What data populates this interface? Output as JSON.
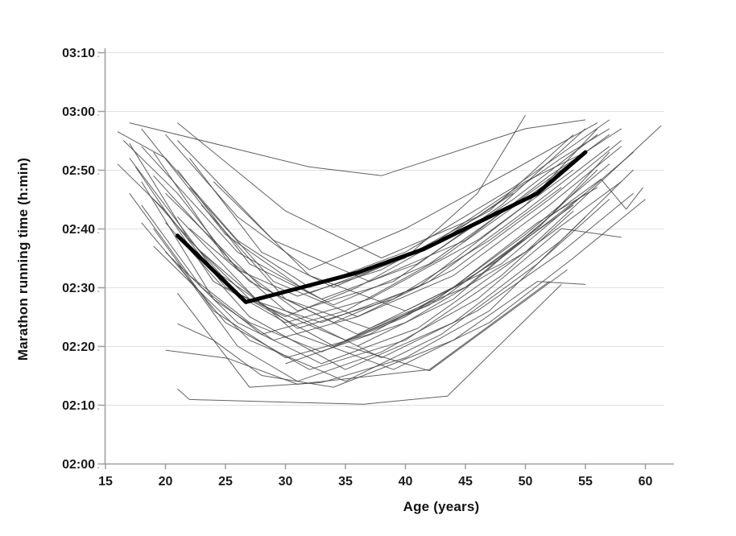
{
  "chart_data": {
    "type": "line",
    "title": "",
    "xlabel": "Age (years)",
    "ylabel": "Marathon running time (h:min)",
    "x_ticks": [
      15,
      20,
      25,
      30,
      35,
      40,
      45,
      50,
      55,
      60
    ],
    "xlim": [
      15,
      62.5
    ],
    "y_value_encoding": "minutes after 02:00 h",
    "ylim_minutes": [
      0,
      70
    ],
    "y_ticks": [
      {
        "label": "03:10",
        "minutes": 70
      },
      {
        "label": "03:00",
        "minutes": 60
      },
      {
        "label": "02:50",
        "minutes": 50
      },
      {
        "label": "02:40",
        "minutes": 40
      },
      {
        "label": "02:30",
        "minutes": 30
      },
      {
        "label": "02:20",
        "minutes": 20
      },
      {
        "label": "02:10",
        "minutes": 10
      },
      {
        "label": "02:00",
        "minutes": 0
      }
    ],
    "y_tick_suffix": ":",
    "grid": "horizontal",
    "legend": "none",
    "colors": {
      "individual_line": "#454545",
      "mean_line": "#000000",
      "axis": "#9d9d9d",
      "gridline": "#e0e0e0",
      "tick_label": "#1a1a1a",
      "tick_suffix": "#b5b5b5"
    },
    "mean_series": {
      "name": "mean-trajectory",
      "points": [
        [
          21,
          38.8
        ],
        [
          26.7,
          27.5
        ],
        [
          31,
          29.8
        ],
        [
          36,
          32.5
        ],
        [
          41.5,
          36.5
        ],
        [
          47.5,
          42.5
        ],
        [
          51,
          46
        ],
        [
          55,
          53
        ]
      ]
    },
    "n_individual_series": 40,
    "individual_series": [
      [
        [
          21,
          12.7
        ],
        [
          22,
          10.9
        ],
        [
          31,
          10.4
        ],
        [
          36.5,
          10.1
        ],
        [
          43.5,
          11.5
        ],
        [
          53,
          30.5
        ]
      ],
      [
        [
          20,
          19.3
        ],
        [
          25.2,
          17.9
        ],
        [
          31,
          13.5
        ],
        [
          42,
          16
        ],
        [
          52,
          31
        ]
      ],
      [
        [
          21,
          29
        ],
        [
          27,
          13
        ],
        [
          33,
          13.8
        ],
        [
          40,
          18
        ],
        [
          47,
          26
        ],
        [
          55,
          42
        ]
      ],
      [
        [
          17,
          58
        ],
        [
          32,
          50.5
        ],
        [
          38,
          49
        ],
        [
          50,
          57
        ],
        [
          55,
          58.5
        ]
      ],
      [
        [
          16.5,
          55
        ],
        [
          21,
          46
        ],
        [
          26,
          33
        ],
        [
          31,
          28.5
        ],
        [
          38,
          33
        ],
        [
          47,
          43
        ],
        [
          54,
          56
        ]
      ],
      [
        [
          17,
          54.5
        ],
        [
          22,
          38
        ],
        [
          27,
          28
        ],
        [
          33,
          24
        ],
        [
          41,
          30
        ],
        [
          50,
          44
        ],
        [
          56,
          57
        ]
      ],
      [
        [
          17.5,
          50.5
        ],
        [
          24,
          31
        ],
        [
          30,
          24
        ],
        [
          37,
          28
        ],
        [
          46,
          38
        ],
        [
          54,
          50
        ]
      ],
      [
        [
          16,
          56.5
        ],
        [
          20,
          52
        ],
        [
          26,
          38
        ],
        [
          32,
          30
        ],
        [
          40,
          36
        ],
        [
          49,
          47
        ],
        [
          57,
          58.5
        ]
      ],
      [
        [
          18,
          48
        ],
        [
          24,
          28
        ],
        [
          29,
          21
        ],
        [
          36,
          25
        ],
        [
          44,
          33
        ],
        [
          52,
          45
        ],
        [
          58,
          55
        ]
      ],
      [
        [
          19,
          53
        ],
        [
          25,
          35
        ],
        [
          31,
          26
        ],
        [
          39,
          31
        ],
        [
          48,
          44
        ],
        [
          55,
          57
        ]
      ],
      [
        [
          20,
          56
        ],
        [
          26,
          42
        ],
        [
          32,
          33
        ],
        [
          40,
          40
        ],
        [
          49,
          50
        ],
        [
          56,
          58
        ]
      ],
      [
        [
          21,
          50
        ],
        [
          27,
          34
        ],
        [
          34,
          27
        ],
        [
          42,
          34
        ],
        [
          51,
          47
        ],
        [
          57,
          56
        ]
      ],
      [
        [
          18,
          44
        ],
        [
          23,
          30
        ],
        [
          28,
          22
        ],
        [
          35,
          26
        ],
        [
          43,
          35
        ],
        [
          52,
          48
        ]
      ],
      [
        [
          19,
          40
        ],
        [
          24,
          26
        ],
        [
          30,
          18
        ],
        [
          37,
          22
        ],
        [
          45,
          31
        ],
        [
          54,
          44
        ]
      ],
      [
        [
          20,
          36
        ],
        [
          26,
          24
        ],
        [
          33,
          17
        ],
        [
          41,
          23
        ],
        [
          50,
          36
        ],
        [
          58,
          48
        ]
      ],
      [
        [
          21,
          42
        ],
        [
          28,
          27
        ],
        [
          35,
          21
        ],
        [
          43,
          28
        ],
        [
          51,
          40
        ],
        [
          56,
          50
        ]
      ],
      [
        [
          22,
          47
        ],
        [
          29,
          31
        ],
        [
          36,
          25
        ],
        [
          44,
          32
        ],
        [
          52,
          44
        ],
        [
          58,
          54
        ]
      ],
      [
        [
          17,
          52
        ],
        [
          24,
          33
        ],
        [
          31,
          23
        ],
        [
          39,
          28
        ],
        [
          47,
          38
        ],
        [
          53,
          47
        ]
      ],
      [
        [
          18,
          57
        ],
        [
          25,
          39
        ],
        [
          32,
          29
        ],
        [
          40,
          35
        ],
        [
          46,
          46
        ],
        [
          50,
          59.3
        ]
      ],
      [
        [
          19,
          45
        ],
        [
          26,
          29
        ],
        [
          34,
          20
        ],
        [
          42,
          27
        ],
        [
          50,
          39
        ],
        [
          57,
          51
        ]
      ],
      [
        [
          20,
          41
        ],
        [
          27,
          25
        ],
        [
          35,
          16
        ],
        [
          44,
          24
        ],
        [
          53,
          38
        ],
        [
          59,
          50
        ]
      ],
      [
        [
          30,
          17
        ],
        [
          40,
          24
        ],
        [
          50,
          36
        ],
        [
          61.3,
          57.5
        ]
      ],
      [
        [
          36,
          20
        ],
        [
          44,
          28
        ],
        [
          52,
          42
        ],
        [
          56.3,
          48.4
        ],
        [
          58.4,
          43.3
        ],
        [
          59.8,
          47
        ]
      ],
      [
        [
          21,
          34
        ],
        [
          26,
          20
        ],
        [
          31,
          14
        ],
        [
          38,
          19
        ],
        [
          46,
          28
        ],
        [
          53,
          40
        ],
        [
          58,
          38.5
        ]
      ],
      [
        [
          22,
          52
        ],
        [
          28,
          36
        ],
        [
          34,
          30
        ],
        [
          42,
          37
        ],
        [
          50,
          48
        ],
        [
          55,
          53
        ]
      ],
      [
        [
          23,
          44
        ],
        [
          30,
          28
        ],
        [
          37,
          23
        ],
        [
          45,
          30
        ],
        [
          52,
          42
        ],
        [
          57,
          53
        ]
      ],
      [
        [
          16,
          51
        ],
        [
          20,
          43
        ],
        [
          25,
          30
        ],
        [
          30,
          25
        ],
        [
          36,
          30
        ],
        [
          43,
          38
        ],
        [
          49,
          46
        ]
      ],
      [
        [
          17,
          46
        ],
        [
          22,
          32
        ],
        [
          27,
          24
        ],
        [
          33,
          19
        ],
        [
          40,
          25
        ],
        [
          48,
          35
        ],
        [
          55,
          46
        ]
      ],
      [
        [
          18,
          54
        ],
        [
          26,
          36
        ],
        [
          33,
          28
        ],
        [
          41,
          34
        ],
        [
          49,
          45
        ],
        [
          56,
          56
        ]
      ],
      [
        [
          19,
          49
        ],
        [
          27,
          31
        ],
        [
          34,
          24
        ],
        [
          42,
          31
        ],
        [
          50,
          43
        ],
        [
          57,
          54
        ]
      ],
      [
        [
          20,
          46
        ],
        [
          28,
          30
        ],
        [
          36,
          22
        ],
        [
          44,
          30
        ],
        [
          51,
          41
        ],
        [
          56,
          47
        ]
      ],
      [
        [
          21,
          55
        ],
        [
          29,
          38
        ],
        [
          37,
          31
        ],
        [
          45,
          38
        ],
        [
          52,
          49
        ],
        [
          58,
          57
        ]
      ],
      [
        [
          22,
          40
        ],
        [
          30,
          26
        ],
        [
          38,
          18
        ],
        [
          46,
          26
        ],
        [
          53,
          36
        ],
        [
          59,
          46
        ]
      ],
      [
        [
          23,
          36
        ],
        [
          31,
          22
        ],
        [
          39,
          16
        ],
        [
          47,
          24
        ],
        [
          54,
          35
        ],
        [
          60,
          45
        ]
      ],
      [
        [
          24,
          48
        ],
        [
          32,
          32
        ],
        [
          40,
          26
        ],
        [
          48,
          34
        ],
        [
          55,
          46
        ],
        [
          59,
          53
        ]
      ],
      [
        [
          18,
          41
        ],
        [
          25,
          24
        ],
        [
          32,
          16
        ],
        [
          40,
          21
        ],
        [
          48,
          32
        ],
        [
          54,
          43
        ]
      ],
      [
        [
          19,
          37
        ],
        [
          27,
          21
        ],
        [
          35,
          14
        ],
        [
          43,
          22
        ],
        [
          51,
          34
        ],
        [
          57,
          45
        ]
      ],
      [
        [
          21,
          58
        ],
        [
          30,
          43
        ],
        [
          38,
          35
        ],
        [
          46,
          42
        ],
        [
          53,
          52
        ],
        [
          57,
          57
        ]
      ],
      [
        [
          35,
          20
        ],
        [
          42,
          15.8
        ],
        [
          53.5,
          33
        ]
      ],
      [
        [
          21,
          23.8
        ],
        [
          24,
          21
        ],
        [
          28,
          15
        ],
        [
          34,
          13
        ],
        [
          44,
          21
        ],
        [
          51,
          31
        ],
        [
          55,
          30.5
        ]
      ]
    ]
  }
}
